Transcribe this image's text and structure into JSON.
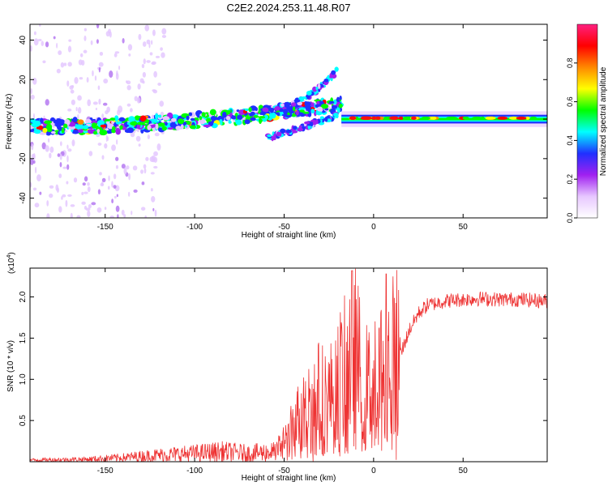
{
  "figure": {
    "title": "C2E2.2024.253.11.48.R07"
  },
  "colors": {
    "axis": "#000000",
    "snr_line": "#ee3333",
    "colormap": [
      "#ffffff",
      "#e7c7ff",
      "#a020f0",
      "#2030ff",
      "#00ffff",
      "#00ff00",
      "#ffff00",
      "#ff8800",
      "#ff0000",
      "#ff2080"
    ]
  },
  "chart_data": [
    {
      "type": "heatmap",
      "xlabel": "Height of straight line (km)",
      "ylabel": "Frequency (Hz)",
      "xlim": [
        -192,
        97
      ],
      "ylim": [
        -50,
        48
      ],
      "xticks": [
        -150,
        -100,
        -50,
        0,
        50
      ],
      "yticks": [
        -40,
        -20,
        0,
        20,
        40
      ],
      "grid": false,
      "colorbar": {
        "label": "Normalized spectral amplitude",
        "range": [
          0.0,
          1.0
        ],
        "ticks": [
          "0.0",
          "0.2",
          "0.4",
          "0.6",
          "0.8"
        ],
        "tick_values": [
          0.0,
          0.2,
          0.4,
          0.6,
          0.8
        ]
      },
      "features": [
        {
          "x_range": [
            -192,
            -18
          ],
          "center_freq": [
            -4,
            8
          ],
          "amplitude": 0.4
        },
        {
          "x_range": [
            -60,
            -20
          ],
          "center_freq": [
            -10,
            20
          ],
          "amplitude": 0.3
        },
        {
          "x_range": [
            -18,
            97
          ],
          "center_freq": [
            0.5,
            0.5
          ],
          "amplitude": 0.75
        }
      ]
    },
    {
      "type": "line",
      "xlabel": "Height of straight line (km)",
      "ylabel": "SNR (10 * v/v)",
      "y_multiplier": "(x10^4)",
      "xlim": [
        -192,
        97
      ],
      "ylim": [
        0,
        2.35
      ],
      "xticks": [
        -150,
        -100,
        -50,
        0,
        50
      ],
      "yticks": [
        0.5,
        1.0,
        1.5,
        2.0
      ],
      "ytick_labels": [
        "0.5",
        "1.0",
        "1.5",
        "2.0"
      ],
      "grid": false,
      "x": [
        -192,
        -160,
        -140,
        -120,
        -100,
        -85,
        -70,
        -55,
        -48,
        -40,
        -35,
        -30,
        -25,
        -20,
        -15,
        -12,
        -10,
        -5,
        0,
        5,
        10,
        15,
        20,
        25,
        30,
        40,
        50,
        60,
        70,
        80,
        97
      ],
      "values": [
        0.02,
        0.03,
        0.05,
        0.08,
        0.1,
        0.12,
        0.1,
        0.12,
        0.3,
        0.6,
        0.7,
        0.8,
        0.75,
        0.95,
        1.1,
        1.4,
        1.25,
        0.9,
        0.9,
        1.1,
        1.2,
        1.3,
        1.6,
        1.8,
        1.9,
        1.95,
        1.97,
        1.98,
        1.97,
        1.97,
        1.95
      ],
      "peaks": [
        {
          "x": -12,
          "y": 2.32
        },
        {
          "x": 7,
          "y": 2.28
        }
      ]
    }
  ],
  "axis_labels": {
    "top_x_ticks": [
      "-150",
      "-100",
      "-50",
      "0",
      "50"
    ],
    "top_y_ticks": [
      "-40",
      "-20",
      "0",
      "20",
      "40"
    ],
    "bottom_x_ticks": [
      "-150",
      "-100",
      "-50",
      "0",
      "50"
    ],
    "multiplier_base": "(x10",
    "multiplier_exp": "4",
    "multiplier_close": ")"
  }
}
